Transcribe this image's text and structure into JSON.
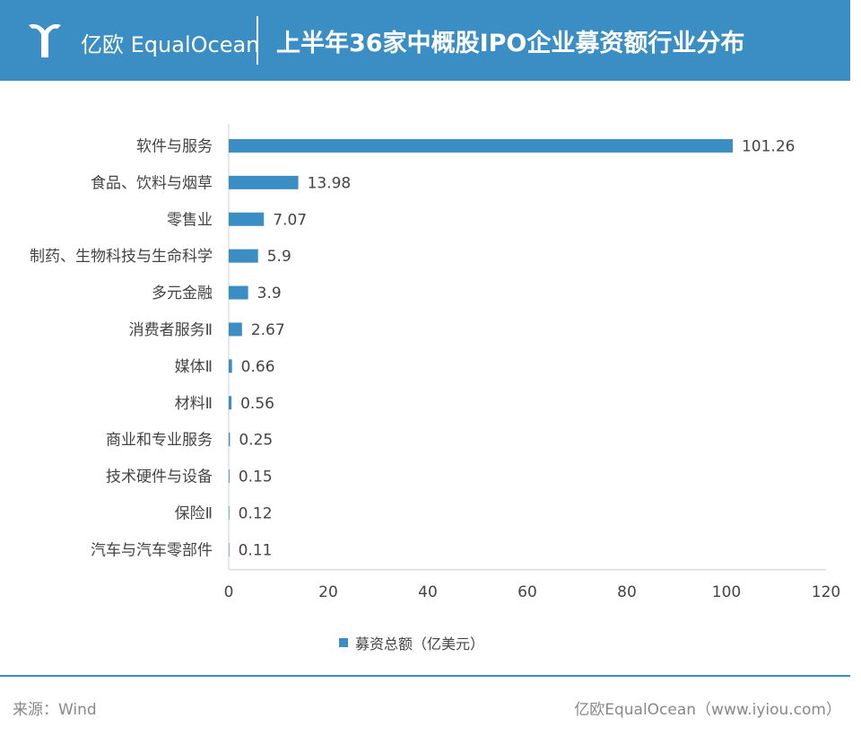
{
  "header": {
    "logo_text": "亿欧 EqualOcean",
    "title": "上半年36家中概股IPO企业募资额行业分布"
  },
  "colors": {
    "header_bg": "#3a8ec4",
    "bar": "#3a8ec4",
    "axis": "#cfcfcf",
    "text": "#444444"
  },
  "chart_data": {
    "type": "bar",
    "orientation": "horizontal",
    "categories": [
      "软件与服务",
      "食品、饮料与烟草",
      "零售业",
      "制药、生物科技与生命科学",
      "多元金融",
      "消费者服务Ⅱ",
      "媒体Ⅱ",
      "材料Ⅱ",
      "商业和专业服务",
      "技术硬件与设备",
      "保险Ⅱ",
      "汽车与汽车零部件"
    ],
    "series": [
      {
        "name": "募资总额（亿美元）",
        "values": [
          101.26,
          13.98,
          7.07,
          5.9,
          3.9,
          2.67,
          0.66,
          0.56,
          0.25,
          0.15,
          0.12,
          0.11
        ]
      }
    ],
    "data_labels": [
      "101.26",
      "13.98",
      "7.07",
      "5.9",
      "3.9",
      "2.67",
      "0.66",
      "0.56",
      "0.25",
      "0.15",
      "0.12",
      "0.11"
    ],
    "xlim": [
      0,
      120
    ],
    "xticks": [
      0,
      20,
      40,
      60,
      80,
      100,
      120
    ],
    "grid": false,
    "legend_position": "bottom"
  },
  "legend": {
    "label": "募资总额（亿美元）"
  },
  "footer": {
    "source": "来源：Wind",
    "credit": "亿欧EqualOcean（www.iyiou.com）"
  }
}
